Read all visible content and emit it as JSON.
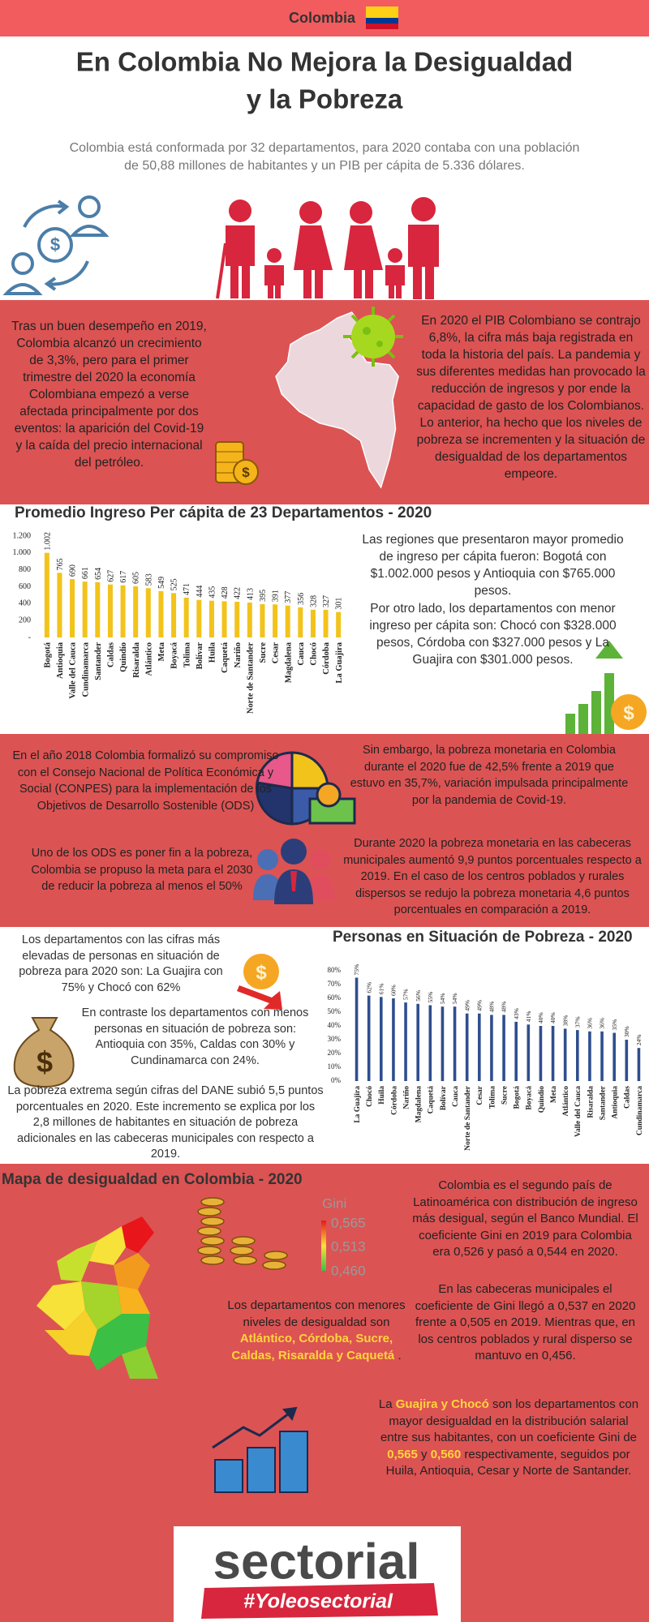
{
  "header": {
    "country": "Colombia",
    "title": [
      "En Colombia No Mejora la Desigualdad",
      "y la Pobreza"
    ],
    "subtitle": "Colombia está conformada por 32 departamentos, para 2020 contaba con una población de 50,88 millones de habitantes y un PIB per cápita de 5.336 dólares."
  },
  "economy": {
    "left": "Tras un buen desempeño en 2019, Colombia alcanzó un crecimiento de 3,3%, pero para el primer trimestre del 2020 la economía Colombiana empezó a verse afectada principalmente por dos eventos: la aparición del Covid-19 y la caída del precio internacional del petróleo.",
    "right": "En 2020 el PIB Colombiano se contrajo 6,8%, la cifra más baja registrada en toda la historia del país. La pandemia y sus diferentes medidas han provocado la reducción de ingresos y por ende la capacidad de gasto de los Colombianos. Lo anterior, ha hecho que los niveles de pobreza se incrementen y la situación de desigualdad de los departamentos empeore."
  },
  "income": {
    "text": [
      "Las regiones que presentaron mayor promedio de ingreso per cápita fueron: Bogotá con $1.002.000 pesos y Antioquia con $765.000 pesos.",
      "Por otro lado, los departamentos con menor ingreso per cápita son: Chocó con $328.000 pesos, Córdoba con $327.000 pesos y La Guajira con $301.000 pesos."
    ]
  },
  "poverty": {
    "left": [
      "En el año 2018 Colombia formalizó su compromiso con el Consejo Nacional  de Política Económica y Social (CONPES) para la implementación de los Objetivos de Desarrollo Sostenible (ODS)",
      "Uno de los ODS es poner fin a la pobreza, Colombia se propuso la meta para el 2030 de reducir la pobreza al menos el 50%"
    ],
    "right": [
      "Sin embargo, la pobreza monetaria en Colombia durante el 2020 fue de 42,5% frente a 2019 que estuvo en 35,7%, variación impulsada principalmente por la pandemia de Covid-19.",
      "Durante 2020 la pobreza monetaria en las cabeceras municipales  aumentó 9,9 puntos porcentuales respecto a 2019. En el caso de los centros poblados y rurales dispersos se redujo la pobreza monetaria 4,6 puntos porcentuales en comparación a 2019."
    ]
  },
  "departments": {
    "text": [
      "Los departamentos con las cifras más elevadas de personas en situación de pobreza para 2020 son: La Guajira con 75%  y Chocó con 62%",
      "En contraste los departamentos con menos personas en situación de pobreza son: Antioquia con 35%, Caldas con 30% y Cundinamarca con 24%.",
      "La pobreza extrema según cifras del DANE subió 5,5 puntos porcentuales en 2020. Este incremento se explica  por los 2,8 millones de habitantes en situación de pobreza adicionales en las cabeceras municipales con respecto a 2019."
    ]
  },
  "inequality": {
    "title": "Mapa de desigualdad en Colombia - 2020",
    "legend": {
      "title": "Gini",
      "labels": [
        "0,565",
        "0,513",
        "0,460"
      ]
    },
    "map_text": [
      "Los departamentos con menores niveles de desigualdad son ",
      "Atlántico, Córdoba, Sucre, Caldas, Risaralda y Caquetá",
      " ."
    ],
    "right": [
      "Colombia es el segundo país de Latinoamérica con distribución de ingreso más desigual, según el Banco Mundial. El coeficiente Gini en 2019 para Colombia era 0,526 y pasó a 0,544 en 2020.",
      "En las cabeceras municipales el coeficiente de Gini llegó a 0,537 en 2020 frente a 0,505 en 2019. Mientras que, en los centros poblados y rural disperso se mantuvo en 0,456."
    ],
    "highlight": [
      "La ",
      "Guajira y Chocó",
      " son los departamentos con mayor desigualdad en la distribución salarial entre sus habitantes, con un coeficiente Gini de ",
      "0,565",
      " y ",
      "0,560",
      " respectivamente, seguidos por Huila, Antioquia, Cesar y Norte de Santander."
    ]
  },
  "footer": {
    "brand": "sectorial",
    "hashtag": "#Yoleosectorial"
  },
  "chart_data": [
    {
      "type": "bar",
      "title": "Promedio Ingreso Per cápita de 23 Departamentos - 2020",
      "categories": [
        "Bogotá",
        "Antioquia",
        "Valle del Cauca",
        "Cundinamarca",
        "Santander",
        "Caldas",
        "Quindío",
        "Risaralda",
        "Atlántico",
        "Meta",
        "Boyacá",
        "Tolima",
        "Bolívar",
        "Huila",
        "Caquetá",
        "Nariño",
        "Norte de Santander",
        "Sucre",
        "Cesar",
        "Magdalena",
        "Cauca",
        "Chocó",
        "Córdoba",
        "La Guajira"
      ],
      "values": [
        1002,
        765,
        690,
        661,
        654,
        627,
        617,
        605,
        583,
        549,
        525,
        471,
        444,
        435,
        428,
        422,
        413,
        395,
        391,
        377,
        356,
        328,
        327,
        301
      ],
      "value_labels": [
        "1.002",
        "765",
        "690",
        "661",
        "654",
        "627",
        "617",
        "605",
        "583",
        "549",
        "525",
        "471",
        "444",
        "435",
        "428",
        "422",
        "413",
        "395",
        "391",
        "377",
        "356",
        "328",
        "327",
        "301"
      ],
      "color": "#f2c31b",
      "ylim": [
        0,
        1200
      ],
      "yticks": [
        {
          "value": 0,
          "label": "-"
        },
        200,
        400,
        600,
        800,
        {
          "value": 1000,
          "label": "1.000"
        },
        {
          "value": 1200,
          "label": "1.200"
        }
      ],
      "grid": false
    },
    {
      "type": "bar",
      "title": "Personas en Situación de Pobreza - 2020",
      "categories": [
        "La Guajira",
        "Chocó",
        "Huila",
        "Córdoba",
        "Nariño",
        "Magdalena",
        "Caquetá",
        "Bolívar",
        "Cauca",
        "Norte de Santander",
        "Cesar",
        "Tolima",
        "Sucre",
        "Bogotá",
        "Boyacá",
        "Quindío",
        "Meta",
        "Atlántico",
        "Valle del Cauca",
        "Risaralda",
        "Santander",
        "Antioquia",
        "Caldas",
        "Cundinamarca"
      ],
      "values": [
        75,
        62,
        61,
        60,
        57,
        56,
        55,
        54,
        54,
        49,
        49,
        48,
        48,
        43,
        41,
        40,
        40,
        38,
        37,
        36,
        36,
        35,
        30,
        24
      ],
      "value_labels": [
        "75%",
        "62%",
        "61%",
        "60%",
        "57%",
        "56%",
        "55%",
        "54%",
        "54%",
        "49%",
        "49%",
        "48%",
        "48%",
        "43%",
        "41%",
        "40%",
        "40%",
        "38%",
        "37%",
        "36%",
        "36%",
        "35%",
        "30%",
        "24%"
      ],
      "color": "#2f4e8e",
      "ylim": [
        0,
        80
      ],
      "yticks": [
        {
          "value": 0,
          "label": "0%"
        },
        {
          "value": 10,
          "label": "10%"
        },
        {
          "value": 20,
          "label": "20%"
        },
        {
          "value": 30,
          "label": "30%"
        },
        {
          "value": 40,
          "label": "40%"
        },
        {
          "value": 50,
          "label": "50%"
        },
        {
          "value": 60,
          "label": "60%"
        },
        {
          "value": 70,
          "label": "70%"
        },
        {
          "value": 80,
          "label": "80%"
        }
      ],
      "grid": false
    }
  ]
}
